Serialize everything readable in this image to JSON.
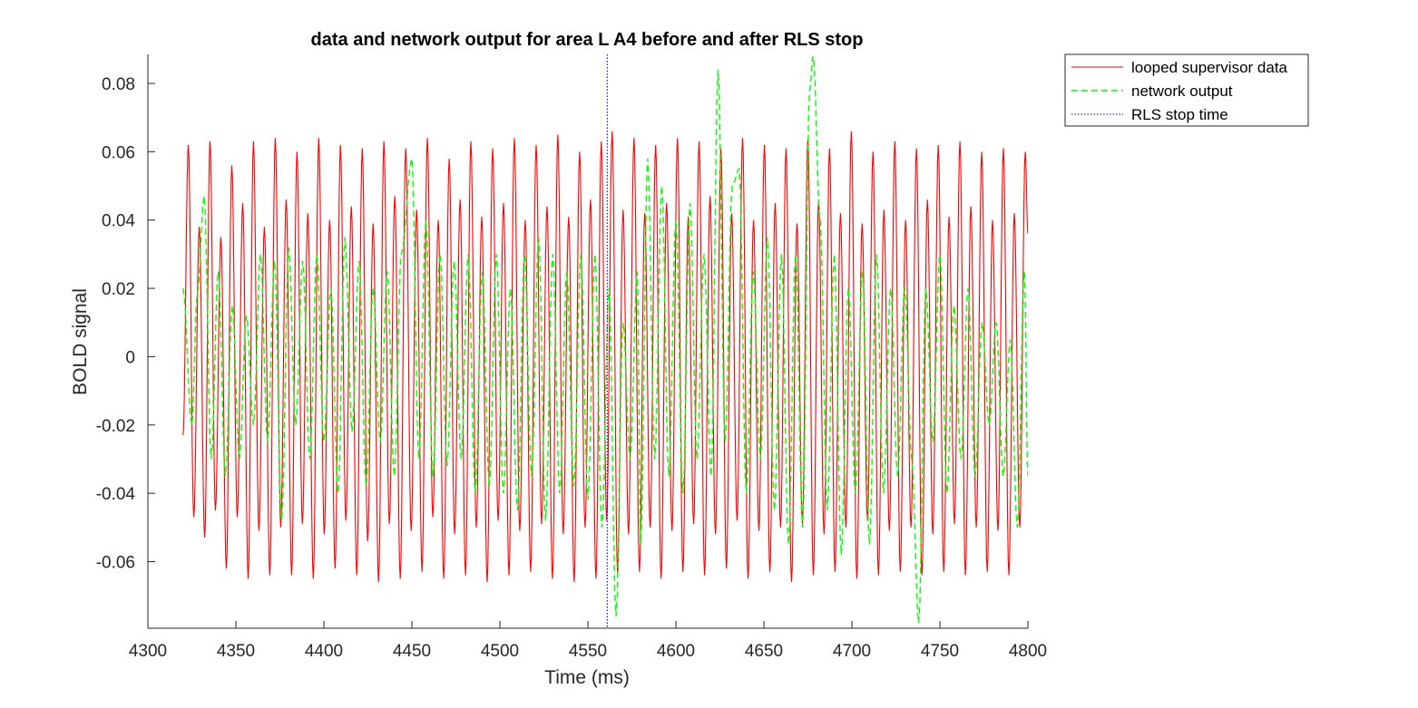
{
  "chart_data": {
    "type": "line",
    "title": "data and network output for area L A4 before and after RLS stop",
    "xlabel": "Time (ms)",
    "ylabel": "BOLD signal",
    "xlim": [
      4300,
      4800
    ],
    "ylim": [
      -0.0795,
      0.0885
    ],
    "x_ticks": [
      4300,
      4350,
      4400,
      4450,
      4500,
      4550,
      4600,
      4650,
      4700,
      4750,
      4800
    ],
    "x_tick_labels": [
      "4300",
      "4350",
      "4400",
      "4450",
      "4500",
      "4550",
      "4600",
      "4650",
      "4700",
      "4750",
      "4800"
    ],
    "y_ticks": [
      -0.06,
      -0.04,
      -0.02,
      0,
      0.02,
      0.04,
      0.06,
      0.08
    ],
    "y_tick_labels": [
      "-0.06",
      "-0.04",
      "-0.02",
      "0",
      "0.02",
      "0.04",
      "0.06",
      "0.08"
    ],
    "grid": false,
    "legend_position": "outside-top-right",
    "series": [
      {
        "name": "looped supervisor data",
        "style": "solid",
        "color": "#ff0000",
        "x_range": [
          4320,
          4800
        ],
        "peak_times": [
          4323.0,
          4329.2,
          4335.3,
          4341.5,
          4347.7,
          4353.9,
          4360.0,
          4366.2,
          4372.4,
          4378.6,
          4384.7,
          4390.9,
          4397.1,
          4403.3,
          4409.4,
          4415.6,
          4421.8,
          4428.0,
          4434.1,
          4440.3,
          4446.5,
          4452.7,
          4458.8,
          4465.0,
          4471.2,
          4477.4,
          4483.5,
          4489.7,
          4495.9,
          4502.1,
          4508.2,
          4514.4,
          4520.6,
          4526.8,
          4532.9,
          4539.1,
          4545.3,
          4551.5,
          4557.6,
          4563.8,
          4570.0,
          4576.2,
          4582.3,
          4588.5,
          4594.7,
          4600.9,
          4607.0,
          4613.2,
          4619.4,
          4625.6,
          4631.7,
          4637.9,
          4644.1,
          4650.3,
          4656.4,
          4662.6,
          4668.8,
          4675.0,
          4681.1,
          4687.3,
          4693.5,
          4699.7,
          4705.8,
          4712.0,
          4718.2,
          4724.4,
          4730.5,
          4736.7,
          4742.9,
          4749.1,
          4755.2,
          4761.4,
          4767.6,
          4773.8,
          4779.9,
          4786.1,
          4792.3,
          4798.5
        ],
        "peak_values": [
          0.062,
          0.038,
          0.063,
          0.035,
          0.056,
          0.045,
          0.063,
          0.038,
          0.064,
          0.046,
          0.06,
          0.042,
          0.064,
          0.04,
          0.062,
          0.044,
          0.061,
          0.039,
          0.063,
          0.047,
          0.061,
          0.043,
          0.064,
          0.04,
          0.058,
          0.046,
          0.063,
          0.041,
          0.061,
          0.045,
          0.064,
          0.04,
          0.062,
          0.044,
          0.065,
          0.041,
          0.06,
          0.046,
          0.063,
          0.066,
          0.043,
          0.064,
          0.042,
          0.062,
          0.045,
          0.064,
          0.041,
          0.063,
          0.047,
          0.061,
          0.042,
          0.064,
          0.04,
          0.062,
          0.045,
          0.061,
          0.039,
          0.064,
          0.046,
          0.061,
          0.042,
          0.066,
          0.039,
          0.06,
          0.043,
          0.063,
          0.04,
          0.061,
          0.046,
          0.062,
          0.041,
          0.063,
          0.044,
          0.06,
          0.04,
          0.061,
          0.042,
          0.06
        ],
        "trough_values": [
          -0.047,
          -0.053,
          -0.045,
          -0.062,
          -0.047,
          -0.065,
          -0.051,
          -0.064,
          -0.05,
          -0.064,
          -0.049,
          -0.065,
          -0.052,
          -0.062,
          -0.048,
          -0.064,
          -0.054,
          -0.066,
          -0.049,
          -0.065,
          -0.051,
          -0.063,
          -0.047,
          -0.065,
          -0.052,
          -0.064,
          -0.05,
          -0.066,
          -0.048,
          -0.064,
          -0.051,
          -0.063,
          -0.049,
          -0.065,
          -0.052,
          -0.066,
          -0.05,
          -0.065,
          -0.048,
          -0.064,
          -0.052,
          -0.063,
          -0.05,
          -0.065,
          -0.051,
          -0.063,
          -0.049,
          -0.064,
          -0.052,
          -0.062,
          -0.048,
          -0.065,
          -0.051,
          -0.063,
          -0.05,
          -0.066,
          -0.049,
          -0.064,
          -0.052,
          -0.063,
          -0.05,
          -0.065,
          -0.048,
          -0.064,
          -0.051,
          -0.063,
          -0.05,
          -0.064,
          -0.052,
          -0.063,
          -0.049,
          -0.064,
          -0.05,
          -0.063,
          -0.051,
          -0.064,
          -0.05,
          -0.059
        ]
      },
      {
        "name": "network output",
        "style": "dashed",
        "color": "#00ff00",
        "x_range": [
          4320,
          4800
        ],
        "points": [
          [
            4320,
            0.02
          ],
          [
            4325,
            -0.02
          ],
          [
            4328,
            0.018
          ],
          [
            4332,
            0.047
          ],
          [
            4336,
            -0.03
          ],
          [
            4340,
            0.025
          ],
          [
            4344,
            -0.035
          ],
          [
            4348,
            0.015
          ],
          [
            4352,
            -0.03
          ],
          [
            4356,
            0.012
          ],
          [
            4360,
            -0.02
          ],
          [
            4364,
            0.03
          ],
          [
            4368,
            -0.025
          ],
          [
            4372,
            0.028
          ],
          [
            4376,
            -0.048
          ],
          [
            4380,
            0.032
          ],
          [
            4384,
            -0.02
          ],
          [
            4388,
            0.028
          ],
          [
            4392,
            -0.03
          ],
          [
            4396,
            0.03
          ],
          [
            4400,
            -0.025
          ],
          [
            4404,
            0.02
          ],
          [
            4408,
            -0.04
          ],
          [
            4412,
            0.035
          ],
          [
            4416,
            -0.022
          ],
          [
            4420,
            0.028
          ],
          [
            4424,
            -0.038
          ],
          [
            4428,
            0.02
          ],
          [
            4432,
            -0.025
          ],
          [
            4436,
            0.025
          ],
          [
            4440,
            -0.035
          ],
          [
            4444,
            0.03
          ],
          [
            4450,
            0.058
          ],
          [
            4454,
            -0.03
          ],
          [
            4458,
            0.04
          ],
          [
            4462,
            -0.035
          ],
          [
            4466,
            0.03
          ],
          [
            4470,
            -0.032
          ],
          [
            4474,
            0.028
          ],
          [
            4478,
            -0.03
          ],
          [
            4482,
            0.03
          ],
          [
            4486,
            -0.04
          ],
          [
            4490,
            0.025
          ],
          [
            4494,
            -0.038
          ],
          [
            4498,
            0.03
          ],
          [
            4502,
            -0.04
          ],
          [
            4506,
            0.02
          ],
          [
            4510,
            -0.045
          ],
          [
            4514,
            0.03
          ],
          [
            4518,
            -0.035
          ],
          [
            4522,
            0.035
          ],
          [
            4526,
            -0.048
          ],
          [
            4530,
            0.03
          ],
          [
            4534,
            -0.04
          ],
          [
            4538,
            0.025
          ],
          [
            4542,
            -0.038
          ],
          [
            4546,
            0.03
          ],
          [
            4550,
            -0.042
          ],
          [
            4554,
            0.03
          ],
          [
            4558,
            -0.05
          ],
          [
            4562,
            0.02
          ],
          [
            4566,
            -0.076
          ],
          [
            4570,
            0.01
          ],
          [
            4574,
            -0.03
          ],
          [
            4578,
            0.025
          ],
          [
            4580,
            -0.055
          ],
          [
            4584,
            0.058
          ],
          [
            4588,
            -0.03
          ],
          [
            4592,
            0.05
          ],
          [
            4596,
            -0.035
          ],
          [
            4600,
            0.04
          ],
          [
            4604,
            -0.04
          ],
          [
            4608,
            0.045
          ],
          [
            4612,
            -0.03
          ],
          [
            4616,
            0.03
          ],
          [
            4620,
            -0.035
          ],
          [
            4624,
            0.084
          ],
          [
            4628,
            -0.025
          ],
          [
            4632,
            0.05
          ],
          [
            4636,
            0.055
          ],
          [
            4640,
            -0.04
          ],
          [
            4644,
            0.025
          ],
          [
            4648,
            -0.03
          ],
          [
            4652,
            0.035
          ],
          [
            4656,
            -0.045
          ],
          [
            4660,
            0.03
          ],
          [
            4664,
            -0.055
          ],
          [
            4668,
            0.03
          ],
          [
            4672,
            -0.05
          ],
          [
            4676,
            0.078
          ],
          [
            4678,
            0.088
          ],
          [
            4682,
            0.04
          ],
          [
            4686,
            -0.045
          ],
          [
            4690,
            0.03
          ],
          [
            4694,
            -0.058
          ],
          [
            4698,
            0.02
          ],
          [
            4702,
            -0.04
          ],
          [
            4706,
            0.025
          ],
          [
            4710,
            -0.055
          ],
          [
            4714,
            0.03
          ],
          [
            4718,
            -0.04
          ],
          [
            4722,
            0.02
          ],
          [
            4726,
            -0.035
          ],
          [
            4730,
            0.02
          ],
          [
            4734,
            -0.03
          ],
          [
            4738,
            -0.078
          ],
          [
            4742,
            0.02
          ],
          [
            4746,
            -0.025
          ],
          [
            4750,
            0.03
          ],
          [
            4754,
            -0.04
          ],
          [
            4758,
            0.015
          ],
          [
            4762,
            -0.03
          ],
          [
            4766,
            0.02
          ],
          [
            4770,
            -0.035
          ],
          [
            4774,
            0.01
          ],
          [
            4778,
            -0.02
          ],
          [
            4782,
            0.01
          ],
          [
            4786,
            -0.035
          ],
          [
            4790,
            0.005
          ],
          [
            4794,
            -0.05
          ],
          [
            4798,
            0.025
          ],
          [
            4800,
            -0.035
          ]
        ]
      },
      {
        "name": "RLS stop time",
        "style": "dotted",
        "color": "#0000ff",
        "x": 4561
      }
    ]
  }
}
